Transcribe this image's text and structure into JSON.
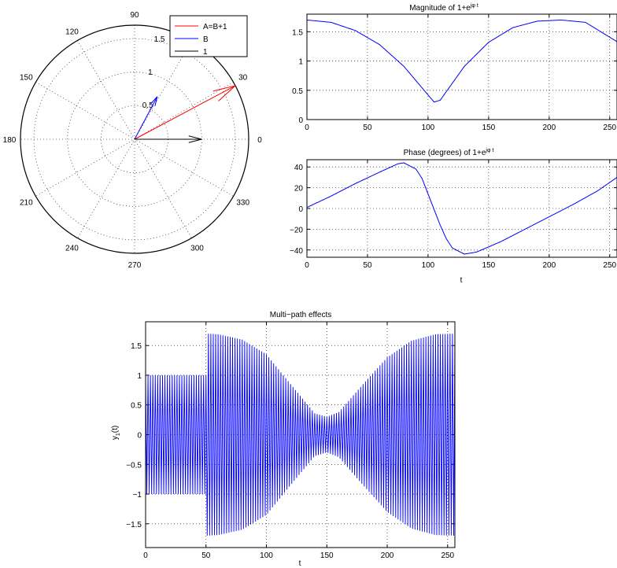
{
  "chart_data": [
    {
      "type": "polar",
      "angle_ticks": [
        "90",
        "120",
        "150",
        "180",
        "210",
        "240",
        "270",
        "300",
        "330",
        "0",
        "30",
        "60"
      ],
      "radius_ticks": [
        "0.5",
        "1",
        "1.5"
      ],
      "rmax": 1.7,
      "series": [
        {
          "name": "A=B+1",
          "color": "#ff0000",
          "angle_deg": 28,
          "r": 1.7
        },
        {
          "name": "B",
          "color": "#0000ff",
          "angle_deg": 62,
          "r": 0.72
        },
        {
          "name": "1",
          "color": "#000000",
          "angle_deg": 0,
          "r": 1.0
        }
      ],
      "legend": "top-right"
    },
    {
      "type": "line",
      "title": "Magnitude of 1+e",
      "title_sup": "jφ t",
      "xlim": [
        0,
        256
      ],
      "ylim": [
        0,
        1.8
      ],
      "xticks": [
        0,
        50,
        100,
        150,
        200,
        250
      ],
      "yticks": [
        0,
        0.5,
        1,
        1.5
      ],
      "color": "#0000ff",
      "grid": true,
      "series": [
        {
          "x": [
            0,
            20,
            40,
            60,
            80,
            100,
            105,
            110,
            130,
            150,
            170,
            190,
            210,
            230,
            256
          ],
          "y": [
            1.7,
            1.66,
            1.52,
            1.28,
            0.91,
            0.42,
            0.3,
            0.33,
            0.91,
            1.32,
            1.57,
            1.68,
            1.7,
            1.66,
            1.33
          ]
        }
      ]
    },
    {
      "type": "line",
      "title": "Phase (degrees) of 1+e",
      "title_sup": "jφ t",
      "xlabel": "t",
      "xlim": [
        0,
        256
      ],
      "ylim": [
        -47,
        47
      ],
      "xticks": [
        0,
        50,
        100,
        150,
        200,
        250
      ],
      "yticks": [
        -40,
        -20,
        0,
        20,
        40
      ],
      "color": "#0000ff",
      "grid": true,
      "series": [
        {
          "x": [
            0,
            20,
            40,
            60,
            75,
            80,
            90,
            95,
            100,
            105,
            110,
            115,
            120,
            130,
            140,
            160,
            180,
            200,
            220,
            240,
            256
          ],
          "y": [
            1,
            12,
            24,
            35,
            43,
            44,
            38,
            29,
            14,
            -1,
            -16,
            -29,
            -38,
            -44,
            -42,
            -32,
            -20,
            -8,
            4,
            17,
            30
          ]
        }
      ]
    },
    {
      "type": "line",
      "title": "Multi−path effects",
      "xlabel": "t",
      "ylabel": "y",
      "ylabel_sub": "1",
      "ylabel_tail": "(t)",
      "xlim": [
        0,
        256
      ],
      "ylim": [
        -1.9,
        1.9
      ],
      "xticks": [
        0,
        50,
        100,
        150,
        200,
        250
      ],
      "yticks": [
        -1.5,
        -1,
        -0.5,
        0,
        0.5,
        1,
        1.5
      ],
      "color": "#0000ff",
      "grid": true,
      "oscillation_period": 2,
      "envelope": {
        "x": [
          0,
          50,
          51,
          60,
          80,
          100,
          120,
          140,
          150,
          160,
          180,
          200,
          220,
          240,
          256
        ],
        "y": [
          1,
          1,
          1.7,
          1.69,
          1.6,
          1.35,
          0.85,
          0.36,
          0.3,
          0.38,
          0.85,
          1.3,
          1.58,
          1.69,
          1.7
        ]
      }
    }
  ],
  "tick_labels": {
    "polar_angles": [
      "90",
      "120",
      "150",
      "180",
      "210",
      "240",
      "270",
      "300",
      "330",
      "0",
      "30",
      "60"
    ],
    "polar_radii": [
      "0.5",
      "1",
      "1.5"
    ],
    "mag_x": [
      "0",
      "50",
      "100",
      "150",
      "200",
      "250"
    ],
    "mag_y": [
      "0",
      "0.5",
      "1",
      "1.5"
    ],
    "phase_x": [
      "0",
      "50",
      "100",
      "150",
      "200",
      "250"
    ],
    "phase_y": [
      "−40",
      "−20",
      "0",
      "20",
      "40"
    ],
    "multi_x": [
      "0",
      "50",
      "100",
      "150",
      "200",
      "250"
    ],
    "multi_y": [
      "−1.5",
      "−1",
      "−0.5",
      "0",
      "0.5",
      "1",
      "1.5"
    ]
  }
}
